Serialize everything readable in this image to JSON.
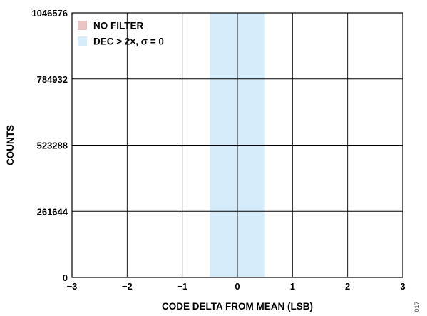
{
  "chart_data": {
    "type": "bar",
    "xlabel": "CODE DELTA FROM MEAN (LSB)",
    "ylabel": "COUNTS",
    "xlim": [
      -3,
      3
    ],
    "ylim": [
      0,
      1046576
    ],
    "x_ticks": [
      -3,
      -2,
      -1,
      0,
      1,
      2,
      3
    ],
    "x_tick_labels": [
      "−3",
      "−2",
      "−1",
      "0",
      "1",
      "2",
      "3"
    ],
    "y_ticks": [
      0,
      261644,
      523288,
      784932,
      1046576
    ],
    "y_tick_labels": [
      "0",
      "261644",
      "523288",
      "784932",
      "1046576"
    ],
    "grid": true,
    "legend_position": "top-left",
    "series": [
      {
        "name": "NO FILTER",
        "color": "#e9c6c3",
        "bars": []
      },
      {
        "name": "DEC > 2×, σ = 0",
        "color": "#d6ecfa",
        "bars": [
          {
            "x0": -0.5,
            "x1": 0.5,
            "value": 1046576
          }
        ]
      }
    ],
    "figure_id": "017"
  }
}
